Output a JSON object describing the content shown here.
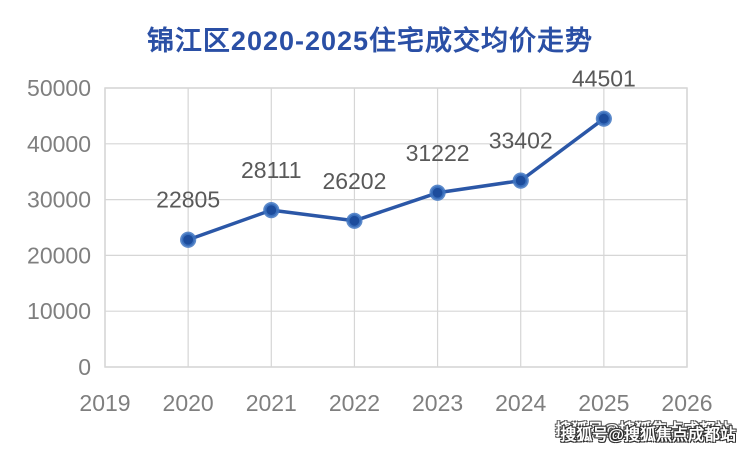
{
  "title": "锦江区2020-2025住宅成交均价走势",
  "watermark": {
    "text": "搜狐号@搜狐焦点成都站"
  },
  "theme": {
    "background": "#ffffff",
    "title_color": "#2a4fa5",
    "line_color": "#2b57a7",
    "marker_fill": "#1c4c9c",
    "marker_ring": "#4076c2",
    "grid_color": "#d6d6d6",
    "tick_label_color": "#7f7f7f",
    "data_label_color": "#595959"
  },
  "chart_data": {
    "type": "line",
    "title": "锦江区2020-2025住宅成交均价走势",
    "x": [
      2020,
      2021,
      2022,
      2023,
      2024,
      2025
    ],
    "values": [
      22805,
      28111,
      26202,
      31222,
      33402,
      44501
    ],
    "xlabel": "",
    "ylabel": "",
    "xlim": [
      2019,
      2026
    ],
    "ylim": [
      0,
      50000
    ],
    "x_ticks": [
      2019,
      2020,
      2021,
      2022,
      2023,
      2024,
      2025,
      2026
    ],
    "y_ticks": [
      0,
      10000,
      20000,
      30000,
      40000,
      50000
    ],
    "grid": true,
    "legend": false,
    "data_labels_shown": true
  }
}
